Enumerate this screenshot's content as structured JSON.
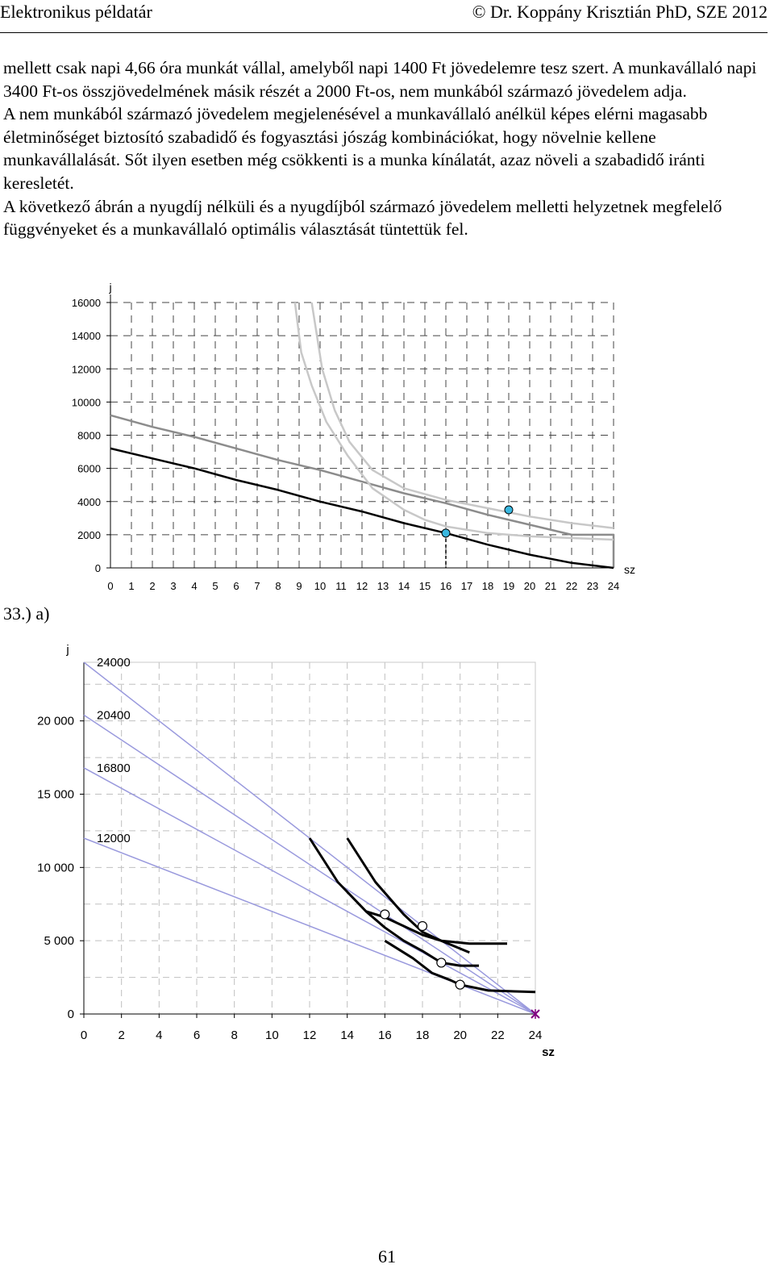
{
  "header": {
    "left": "Elektronikus példatár",
    "right": "© Dr. Koppány Krisztián PhD, SZE 2012"
  },
  "paragraphs": [
    "mellett csak napi 4,66 óra munkát vállal, amelyből napi 1400 Ft jövedelemre tesz szert. A munkavállaló napi 3400 Ft-os összjövedelmének másik részét a 2000 Ft-os, nem munkából származó jövedelem adja.",
    "A nem munkából származó jövedelem megjelenésével a munkavállaló anélkül képes elérni magasabb életminőséget biztosító szabadidő és fogyasztási jószág kombinációkat, hogy növelnie kellene munkavállalását. Sőt ilyen esetben még csökkenti is a munka kínálatát, azaz növeli a szabadidő iránti keresletét.",
    "A következő ábrán a nyugdíj nélküli és a nyugdíjból származó jövedelem melletti helyzetnek megfelelő függvényeket és a munkavállaló optimális választását tüntettük fel."
  ],
  "exercise_label": "33.) a)",
  "page_number": "61",
  "chart_data": [
    {
      "type": "line",
      "ylabel": "j",
      "xlabel": "sz",
      "xlim": [
        0,
        24
      ],
      "ylim": [
        0,
        16000
      ],
      "xticks": [
        0,
        1,
        2,
        3,
        4,
        5,
        6,
        7,
        8,
        9,
        10,
        11,
        12,
        13,
        14,
        15,
        16,
        17,
        18,
        19,
        20,
        21,
        22,
        23,
        24
      ],
      "yticks": [
        0,
        2000,
        4000,
        6000,
        8000,
        10000,
        12000,
        14000,
        16000
      ],
      "grid": true,
      "colors": {
        "budget_black": "#000000",
        "budget_gray": "#8c8c8c",
        "indifference": "#c8c8c8",
        "optimum_fill": "#3ab8e0"
      },
      "series": [
        {
          "style": "budget_gray",
          "points": [
            [
              0,
              9200
            ],
            [
              2,
              8500
            ],
            [
              4,
              7900
            ],
            [
              6,
              7200
            ],
            [
              8,
              6500
            ],
            [
              10,
              5900
            ],
            [
              12,
              5200
            ],
            [
              14,
              4500
            ],
            [
              16,
              3900
            ],
            [
              18,
              3200
            ],
            [
              20,
              2600
            ],
            [
              22,
              2000
            ],
            [
              24,
              2000
            ],
            [
              24,
              0
            ]
          ]
        },
        {
          "style": "budget_black",
          "points": [
            [
              0,
              7200
            ],
            [
              2,
              6600
            ],
            [
              4,
              6000
            ],
            [
              6,
              5300
            ],
            [
              8,
              4700
            ],
            [
              10,
              4000
            ],
            [
              12,
              3400
            ],
            [
              14,
              2700
            ],
            [
              16,
              2100
            ],
            [
              18,
              1400
            ],
            [
              20,
              800
            ],
            [
              22,
              300
            ],
            [
              24,
              0
            ]
          ]
        },
        {
          "style": "indifference",
          "points": [
            [
              9.6,
              16000
            ],
            [
              10.1,
              12000
            ],
            [
              10.7,
              9500
            ],
            [
              11.4,
              7600
            ],
            [
              12.5,
              5900
            ],
            [
              14,
              4800
            ],
            [
              16,
              4100
            ],
            [
              18,
              3600
            ],
            [
              20,
              3100
            ],
            [
              22,
              2700
            ],
            [
              24,
              2400
            ]
          ]
        },
        {
          "style": "indifference",
          "points": [
            [
              8.8,
              16000
            ],
            [
              9.1,
              13000
            ],
            [
              9.6,
              11000
            ],
            [
              10.3,
              8800
            ],
            [
              11.3,
              6800
            ],
            [
              12.5,
              4800
            ],
            [
              14,
              3500
            ],
            [
              15,
              2900
            ],
            [
              16,
              2500
            ],
            [
              18,
              2100
            ],
            [
              20,
              1900
            ],
            [
              22,
              1800
            ],
            [
              24,
              1700
            ]
          ]
        }
      ],
      "optima": [
        [
          16,
          2100
        ],
        [
          19,
          3500
        ]
      ],
      "dashed_drop": [
        16,
        2100
      ]
    },
    {
      "type": "line",
      "ylabel": "j",
      "xlabel": "sz",
      "xlim": [
        0,
        24
      ],
      "ylim": [
        0,
        24000
      ],
      "xticks": [
        0,
        2,
        4,
        6,
        8,
        10,
        12,
        14,
        16,
        18,
        20,
        22,
        24
      ],
      "yticks": [
        0,
        5000,
        10000,
        15000,
        20000
      ],
      "ytick_labels": [
        "0",
        "5 000",
        "10 000",
        "15 000",
        "20 000"
      ],
      "grid": true,
      "colors": {
        "budget": "#9999dd",
        "indifference": "#000000",
        "endpoint": "#800080"
      },
      "budget_lines": [
        {
          "label": "24000",
          "intercept": 24000
        },
        {
          "label": "20400",
          "intercept": 20400
        },
        {
          "label": "16800",
          "intercept": 16800
        },
        {
          "label": "12000",
          "intercept": 12000
        }
      ],
      "indifference_curves": [
        [
          [
            14,
            12000
          ],
          [
            15.5,
            9000
          ],
          [
            17,
            6800
          ],
          [
            18,
            5600
          ],
          [
            19,
            5000
          ],
          [
            20.5,
            4800
          ],
          [
            22.5,
            4800
          ]
        ],
        [
          [
            12,
            12000
          ],
          [
            13.5,
            9000
          ],
          [
            15,
            7000
          ],
          [
            16,
            6600
          ],
          [
            17,
            6000
          ],
          [
            18,
            5400
          ],
          [
            19,
            5000
          ],
          [
            20.5,
            4200
          ]
        ],
        [
          [
            15,
            7000
          ],
          [
            16,
            5900
          ],
          [
            17,
            5000
          ],
          [
            18,
            4300
          ],
          [
            19,
            3500
          ],
          [
            20,
            3300
          ],
          [
            21,
            3300
          ]
        ],
        [
          [
            16,
            5000
          ],
          [
            17.5,
            3800
          ],
          [
            18.5,
            2800
          ],
          [
            19.5,
            2300
          ],
          [
            20,
            2000
          ],
          [
            21.5,
            1600
          ],
          [
            24,
            1500
          ]
        ]
      ],
      "optima": [
        [
          16,
          6800
        ],
        [
          18,
          6000
        ],
        [
          19,
          3500
        ],
        [
          20,
          2000
        ]
      ],
      "endpoint": [
        24,
        0
      ]
    }
  ]
}
